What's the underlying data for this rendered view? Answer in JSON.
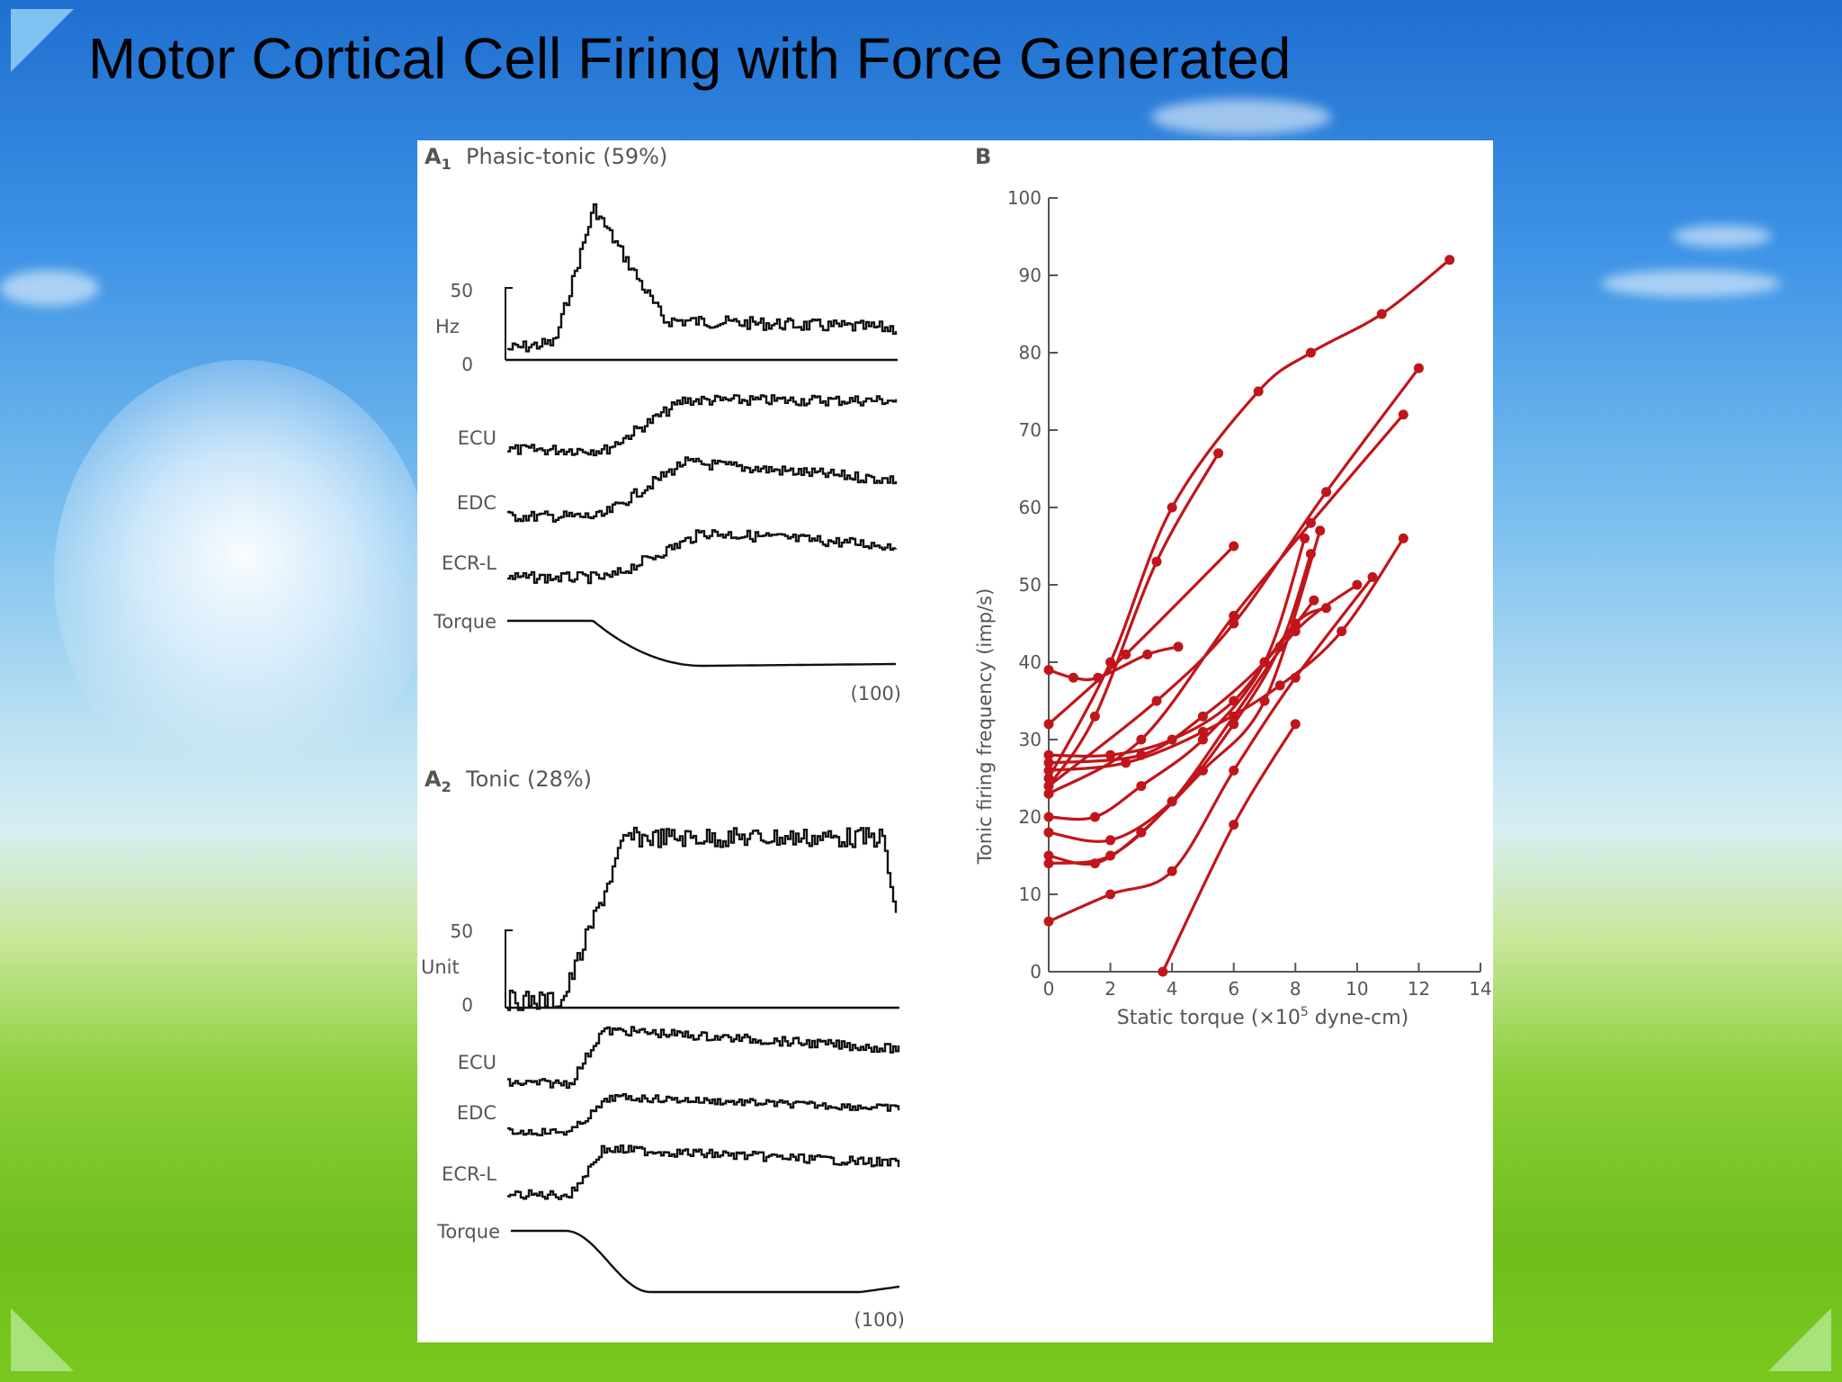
{
  "slide": {
    "title": "Motor Cortical Cell Firing with Force Generated"
  },
  "panels": {
    "a1": {
      "label": "A",
      "subscript": "1",
      "title": "Phasic-tonic (59%)",
      "unit_label": "Hz",
      "y_ticks": [
        "50",
        "0"
      ],
      "traces": [
        "ECU",
        "EDC",
        "ECR-L",
        "Torque"
      ],
      "note": "(100)"
    },
    "a2": {
      "label": "A",
      "subscript": "2",
      "title": "Tonic (28%)",
      "unit_label": "Unit",
      "y_ticks": [
        "50",
        "0"
      ],
      "traces": [
        "ECU",
        "EDC",
        "ECR-L",
        "Torque"
      ],
      "note": "(100)"
    },
    "b": {
      "label": "B"
    }
  },
  "chart_data": {
    "type": "scatter",
    "title": "",
    "xlabel": "Static torque (×10",
    "xlabel_sup": "5",
    "xlabel_tail": " dyne-cm)",
    "ylabel": "Tonic firing frequency (imp/s)",
    "xlim": [
      0,
      14
    ],
    "ylim": [
      0,
      100
    ],
    "x_ticks": [
      "0",
      "2",
      "4",
      "6",
      "8",
      "10",
      "12",
      "14"
    ],
    "y_ticks": [
      "0",
      "10",
      "20",
      "30",
      "40",
      "50",
      "60",
      "70",
      "80",
      "90",
      "100"
    ],
    "color": "#c0161b",
    "series": [
      {
        "points": [
          [
            0,
            24
          ],
          [
            1.5,
            33
          ],
          [
            3.5,
            53
          ],
          [
            5.5,
            67
          ]
        ]
      },
      {
        "points": [
          [
            0,
            25
          ],
          [
            2,
            40
          ],
          [
            4,
            60
          ],
          [
            6.8,
            75
          ],
          [
            8.5,
            80
          ],
          [
            10.8,
            85
          ],
          [
            13,
            92
          ]
        ]
      },
      {
        "points": [
          [
            0,
            39
          ],
          [
            0.8,
            38
          ],
          [
            1.6,
            38
          ],
          [
            3.2,
            41
          ],
          [
            4.2,
            42
          ]
        ]
      },
      {
        "points": [
          [
            0,
            32
          ],
          [
            2.5,
            41
          ],
          [
            6,
            55
          ]
        ]
      },
      {
        "points": [
          [
            0,
            28
          ],
          [
            2,
            28
          ],
          [
            4,
            30
          ],
          [
            6,
            35
          ],
          [
            8,
            45
          ],
          [
            9,
            47
          ]
        ]
      },
      {
        "points": [
          [
            0,
            27
          ],
          [
            3,
            28
          ],
          [
            5,
            33
          ],
          [
            7,
            40
          ],
          [
            8.6,
            48
          ]
        ]
      },
      {
        "points": [
          [
            0,
            26
          ],
          [
            2.5,
            27
          ],
          [
            5,
            31
          ],
          [
            7.5,
            37
          ],
          [
            9.5,
            44
          ],
          [
            11.5,
            56
          ]
        ]
      },
      {
        "points": [
          [
            0,
            20
          ],
          [
            1.5,
            20
          ],
          [
            3,
            24
          ],
          [
            5,
            30
          ],
          [
            7,
            40
          ],
          [
            8.3,
            56
          ]
        ]
      },
      {
        "points": [
          [
            0,
            18
          ],
          [
            2,
            17
          ],
          [
            4,
            22
          ],
          [
            6,
            32
          ],
          [
            7.5,
            42
          ],
          [
            8.5,
            54
          ]
        ]
      },
      {
        "points": [
          [
            0,
            15
          ],
          [
            1.5,
            14
          ],
          [
            3,
            18
          ],
          [
            5,
            26
          ],
          [
            7,
            35
          ],
          [
            8.8,
            57
          ]
        ]
      },
      {
        "points": [
          [
            0,
            14
          ],
          [
            2,
            15
          ],
          [
            4,
            22
          ],
          [
            6,
            33
          ],
          [
            8,
            44
          ],
          [
            10,
            50
          ]
        ]
      },
      {
        "points": [
          [
            0,
            6.5
          ],
          [
            2,
            10
          ],
          [
            4,
            13
          ],
          [
            6,
            26
          ],
          [
            8,
            38
          ],
          [
            10.5,
            51
          ]
        ]
      },
      {
        "points": [
          [
            0,
            23
          ],
          [
            3,
            30
          ],
          [
            6,
            46
          ],
          [
            8.5,
            58
          ],
          [
            11.5,
            72
          ]
        ]
      },
      {
        "points": [
          [
            0,
            24
          ],
          [
            3.5,
            35
          ],
          [
            6,
            45
          ],
          [
            9,
            62
          ],
          [
            12,
            78
          ]
        ]
      },
      {
        "points": [
          [
            3.7,
            0
          ],
          [
            6,
            19
          ],
          [
            8,
            32
          ]
        ]
      }
    ]
  }
}
